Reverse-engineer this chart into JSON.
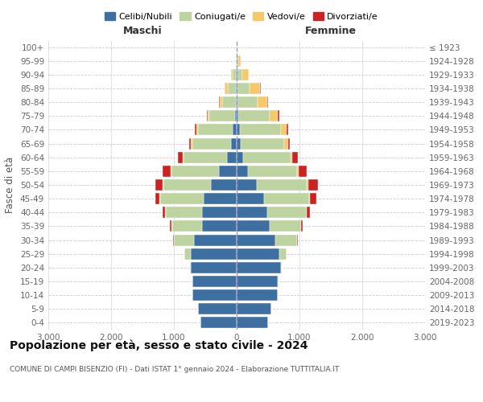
{
  "age_groups": [
    "0-4",
    "5-9",
    "10-14",
    "15-19",
    "20-24",
    "25-29",
    "30-34",
    "35-39",
    "40-44",
    "45-49",
    "50-54",
    "55-59",
    "60-64",
    "65-69",
    "70-74",
    "75-79",
    "80-84",
    "85-89",
    "90-94",
    "95-99",
    "100+"
  ],
  "birth_years": [
    "2019-2023",
    "2014-2018",
    "2009-2013",
    "2004-2008",
    "1999-2003",
    "1994-1998",
    "1989-1993",
    "1984-1988",
    "1979-1983",
    "1974-1978",
    "1969-1973",
    "1964-1968",
    "1959-1963",
    "1954-1958",
    "1949-1953",
    "1944-1948",
    "1939-1943",
    "1934-1938",
    "1929-1933",
    "1924-1928",
    "≤ 1923"
  ],
  "males": {
    "celibi": [
      580,
      620,
      700,
      700,
      730,
      730,
      680,
      550,
      550,
      520,
      410,
      280,
      150,
      90,
      70,
      30,
      15,
      10,
      8,
      4,
      2
    ],
    "coniugati": [
      0,
      0,
      3,
      5,
      20,
      100,
      320,
      480,
      580,
      700,
      760,
      760,
      700,
      620,
      550,
      400,
      220,
      130,
      60,
      10,
      2
    ],
    "vedovi": [
      0,
      0,
      0,
      0,
      0,
      0,
      2,
      3,
      5,
      5,
      5,
      10,
      10,
      15,
      20,
      30,
      40,
      50,
      20,
      5,
      0
    ],
    "divorziati": [
      0,
      0,
      0,
      0,
      0,
      5,
      15,
      30,
      40,
      70,
      120,
      130,
      80,
      35,
      30,
      20,
      10,
      5,
      0,
      0,
      0
    ]
  },
  "females": {
    "nubili": [
      500,
      555,
      650,
      660,
      700,
      680,
      620,
      520,
      490,
      430,
      320,
      185,
      105,
      65,
      55,
      28,
      18,
      12,
      8,
      3,
      2
    ],
    "coniugate": [
      0,
      0,
      3,
      5,
      22,
      110,
      340,
      500,
      620,
      730,
      800,
      780,
      750,
      685,
      650,
      500,
      310,
      190,
      80,
      25,
      5
    ],
    "vedove": [
      0,
      0,
      0,
      0,
      0,
      0,
      3,
      5,
      8,
      10,
      15,
      22,
      32,
      65,
      85,
      125,
      155,
      175,
      100,
      30,
      5
    ],
    "divorziate": [
      0,
      0,
      0,
      0,
      0,
      5,
      15,
      32,
      48,
      105,
      155,
      132,
      92,
      35,
      32,
      25,
      15,
      10,
      5,
      0,
      0
    ]
  },
  "colors": {
    "celibi": "#3d6fa0",
    "coniugati": "#bdd4a0",
    "vedovi": "#f5c96a",
    "divorziati": "#cc2222"
  },
  "xlim": 3000,
  "title": "Popolazione per età, sesso e stato civile - 2024",
  "subtitle": "COMUNE DI CAMPI BISENZIO (FI) - Dati ISTAT 1° gennaio 2024 - Elaborazione TUTTITALIA.IT",
  "ylabel_left": "Fasce di età",
  "xlabel_maschi": "Maschi",
  "xlabel_femmine": "Femmine",
  "legend_labels": [
    "Celibi/Nubili",
    "Coniugati/e",
    "Vedovi/e",
    "Divorziati/e"
  ]
}
